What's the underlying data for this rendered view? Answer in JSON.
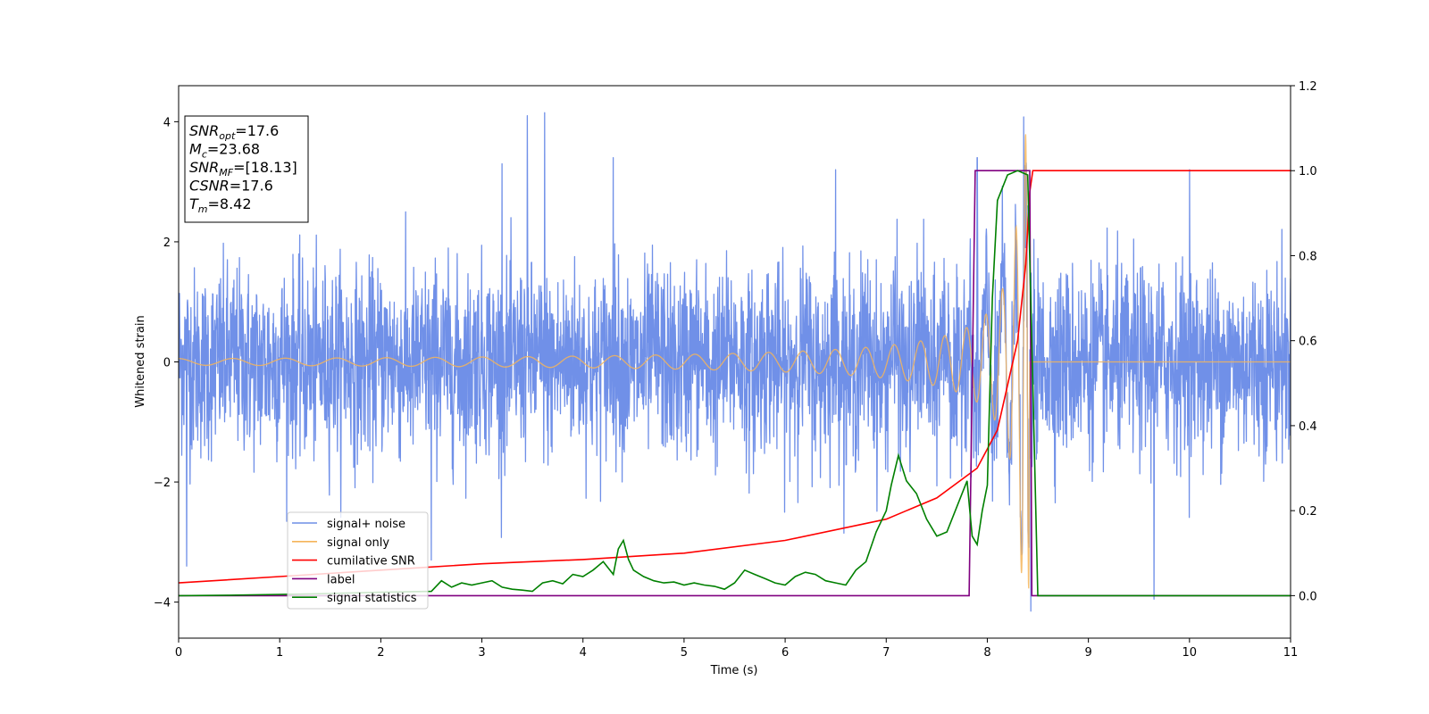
{
  "chart_data": {
    "type": "line",
    "xlabel": "Time (s)",
    "ylabel": "Whitened strain",
    "xlim": [
      0,
      11
    ],
    "ylim_left": [
      -4.6,
      4.6
    ],
    "ylim_right": [
      -0.1,
      1.2
    ],
    "x_ticks": [
      "0",
      "1",
      "2",
      "3",
      "4",
      "5",
      "6",
      "7",
      "8",
      "9",
      "10",
      "11"
    ],
    "y_left_ticks": [
      "−4",
      "−2",
      "0",
      "2",
      "4"
    ],
    "y_right_ticks": [
      "0.0",
      "0.2",
      "0.4",
      "0.6",
      "0.8",
      "1.0",
      "1.2"
    ],
    "info_box": [
      {
        "sym": "SNR",
        "sub": "opt",
        "value": "=17.6"
      },
      {
        "sym": "M",
        "sub": "c",
        "value": "=23.68"
      },
      {
        "sym": "SNR",
        "sub": "MF",
        "value": "=[18.13]"
      },
      {
        "sym": "CSNR",
        "sub": "",
        "value": "=17.6"
      },
      {
        "sym": "T",
        "sub": "m",
        "value": "=8.42"
      }
    ],
    "series": [
      {
        "name": "signal+ noise",
        "axis": "left",
        "color": "#7090e8",
        "description": "whitened noise plus chirp, approx. |y| < 2.2 with spikes to about 4.1",
        "spikes": [
          [
            0.08,
            -3.4
          ],
          [
            3.45,
            4.1
          ],
          [
            3.62,
            4.15
          ],
          [
            3.2,
            3.3
          ],
          [
            4.3,
            3.4
          ],
          [
            2.5,
            -3.3
          ],
          [
            7.9,
            3.4
          ],
          [
            8.36,
            4.08
          ],
          [
            8.43,
            -4.15
          ],
          [
            9.65,
            -3.95
          ],
          [
            10.0,
            3.2
          ],
          [
            6.5,
            3.2
          ]
        ]
      },
      {
        "name": "signal only",
        "axis": "left",
        "color": "#f5b55a",
        "description": "chirp growing until merger",
        "merger_time": 8.42,
        "peak_amplitude": 3.8
      },
      {
        "name": "cumilative SNR",
        "axis": "right",
        "color": "#ff0000",
        "x": [
          0,
          1,
          2,
          3,
          4,
          5,
          6,
          7,
          7.5,
          7.9,
          8.1,
          8.3,
          8.38,
          8.42,
          8.45,
          11
        ],
        "y": [
          0.03,
          0.045,
          0.06,
          0.075,
          0.085,
          0.1,
          0.13,
          0.18,
          0.23,
          0.3,
          0.39,
          0.6,
          0.78,
          0.95,
          1.0,
          1.0
        ]
      },
      {
        "name": "label",
        "axis": "right",
        "color": "#800080",
        "x": [
          0,
          7.82,
          7.88,
          8.42,
          8.44,
          11
        ],
        "y": [
          0,
          0,
          1.0,
          1.0,
          0,
          0
        ]
      },
      {
        "name": "signal statistics",
        "axis": "right",
        "color": "#008000",
        "x": [
          0,
          0.5,
          1,
          1.5,
          2.0,
          2.5,
          2.6,
          2.7,
          2.8,
          2.9,
          3.0,
          3.1,
          3.2,
          3.3,
          3.4,
          3.5,
          3.6,
          3.7,
          3.8,
          3.9,
          4.0,
          4.1,
          4.2,
          4.3,
          4.35,
          4.4,
          4.45,
          4.5,
          4.6,
          4.7,
          4.8,
          4.9,
          5.0,
          5.1,
          5.2,
          5.3,
          5.4,
          5.5,
          5.6,
          5.7,
          5.8,
          5.9,
          6.0,
          6.1,
          6.2,
          6.3,
          6.4,
          6.5,
          6.6,
          6.7,
          6.8,
          6.9,
          7.0,
          7.05,
          7.12,
          7.2,
          7.3,
          7.4,
          7.5,
          7.6,
          7.7,
          7.8,
          7.85,
          7.9,
          7.95,
          8.0,
          8.05,
          8.1,
          8.2,
          8.3,
          8.4,
          8.45,
          8.5,
          11
        ],
        "y": [
          0,
          0.001,
          0.003,
          0.005,
          0.008,
          0.01,
          0.035,
          0.02,
          0.03,
          0.025,
          0.03,
          0.035,
          0.02,
          0.015,
          0.013,
          0.01,
          0.03,
          0.035,
          0.028,
          0.05,
          0.045,
          0.06,
          0.08,
          0.05,
          0.11,
          0.13,
          0.085,
          0.06,
          0.045,
          0.035,
          0.03,
          0.032,
          0.025,
          0.03,
          0.025,
          0.022,
          0.015,
          0.03,
          0.06,
          0.05,
          0.04,
          0.03,
          0.025,
          0.045,
          0.055,
          0.05,
          0.035,
          0.03,
          0.025,
          0.06,
          0.08,
          0.15,
          0.2,
          0.26,
          0.33,
          0.27,
          0.24,
          0.18,
          0.14,
          0.15,
          0.21,
          0.27,
          0.14,
          0.12,
          0.2,
          0.26,
          0.7,
          0.93,
          0.99,
          1.0,
          0.99,
          0.5,
          0.0,
          0.0
        ]
      }
    ],
    "legend": {
      "placement": "lower-left",
      "entries": [
        {
          "label": "signal+ noise",
          "color": "#6f8fe6"
        },
        {
          "label": "signal only",
          "color": "#f5b55a"
        },
        {
          "label": "cumilative SNR",
          "color": "#ff0000"
        },
        {
          "label": "label",
          "color": "#800080"
        },
        {
          "label": "signal statistics",
          "color": "#008000"
        }
      ]
    }
  }
}
